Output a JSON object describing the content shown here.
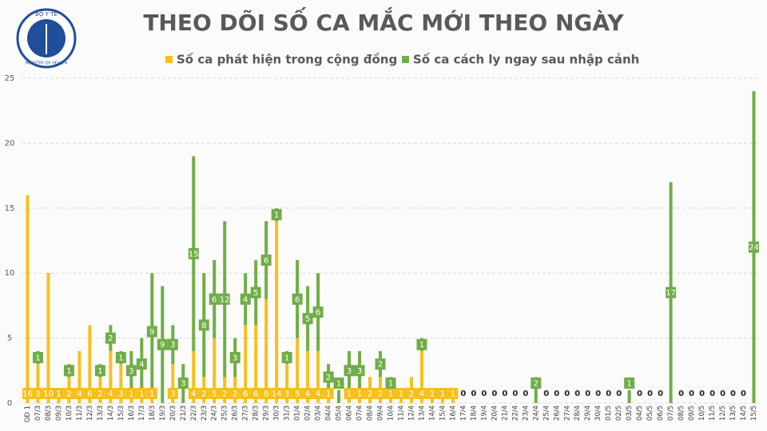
{
  "logo": {
    "top": "BỘ Y TẾ",
    "bottom": "MINISTRY OF HEALTH"
  },
  "chart_data": {
    "type": "stacked-bar",
    "title": "THEO DÕI SỐ CA MẮC MỚI THEO NGÀY",
    "categories": [
      "GĐ 1",
      "07/3",
      "08/3",
      "09/3",
      "10/3",
      "11/3",
      "12/3",
      "13/3",
      "14/3",
      "15/3",
      "16/3",
      "17/3",
      "18/3",
      "19/3",
      "20/3",
      "21/3",
      "22/3",
      "23/3",
      "24/3",
      "25/3",
      "26/3",
      "27/3",
      "28/3",
      "29/3",
      "30/3",
      "31/3",
      "01/4",
      "02/4",
      "03/4",
      "04/4",
      "05/4",
      "06/4",
      "07/4",
      "08/4",
      "09/4",
      "10/4",
      "11/4",
      "12/4",
      "13/4",
      "14/4",
      "15/4",
      "16/4",
      "17/4",
      "18/4",
      "19/4",
      "20/4",
      "21/4",
      "22/4",
      "23/4",
      "24/4",
      "25/4",
      "26/4",
      "27/4",
      "28/4",
      "29/4",
      "30/4",
      "01/5",
      "02/5",
      "03/5",
      "04/5",
      "05/5",
      "06/5",
      "07/5",
      "08/5",
      "09/5",
      "10/5",
      "11/5",
      "12/5",
      "13/5",
      "14/5",
      "15/5"
    ],
    "series": [
      {
        "name": "Số ca phát hiện trong cộng đồng",
        "color": "#f8bf1c",
        "values": [
          16,
          3,
          10,
          1,
          2,
          4,
          6,
          2,
          4,
          3,
          1,
          1,
          1,
          0,
          3,
          0,
          4,
          2,
          5,
          2,
          2,
          6,
          6,
          8,
          14,
          3,
          5,
          4,
          4,
          1,
          0,
          1,
          1,
          2,
          2,
          1,
          1,
          2,
          4,
          1,
          1,
          1,
          0,
          0,
          0,
          0,
          0,
          0,
          0,
          0,
          0,
          0,
          0,
          0,
          0,
          0,
          0,
          0,
          0,
          0,
          0,
          0,
          0,
          0,
          0,
          0,
          0,
          0,
          0,
          0,
          0
        ]
      },
      {
        "name": "Số ca cách ly ngay sau nhập cảnh",
        "color": "#70ad47",
        "values": [
          0,
          1,
          0,
          0,
          1,
          0,
          0,
          1,
          2,
          1,
          3,
          4,
          9,
          9,
          3,
          3,
          15,
          8,
          6,
          12,
          3,
          4,
          5,
          6,
          1,
          1,
          6,
          5,
          6,
          2,
          1,
          3,
          3,
          0,
          2,
          1,
          0,
          0,
          1,
          0,
          0,
          0,
          0,
          0,
          0,
          0,
          0,
          0,
          0,
          2,
          0,
          0,
          0,
          0,
          0,
          0,
          0,
          0,
          1,
          0,
          0,
          0,
          17,
          0,
          0,
          0,
          0,
          0,
          0,
          0,
          24
        ]
      }
    ],
    "ylim": [
      0,
      25
    ],
    "yticks": [
      0,
      5,
      10,
      15,
      20,
      25
    ],
    "grid": true
  }
}
